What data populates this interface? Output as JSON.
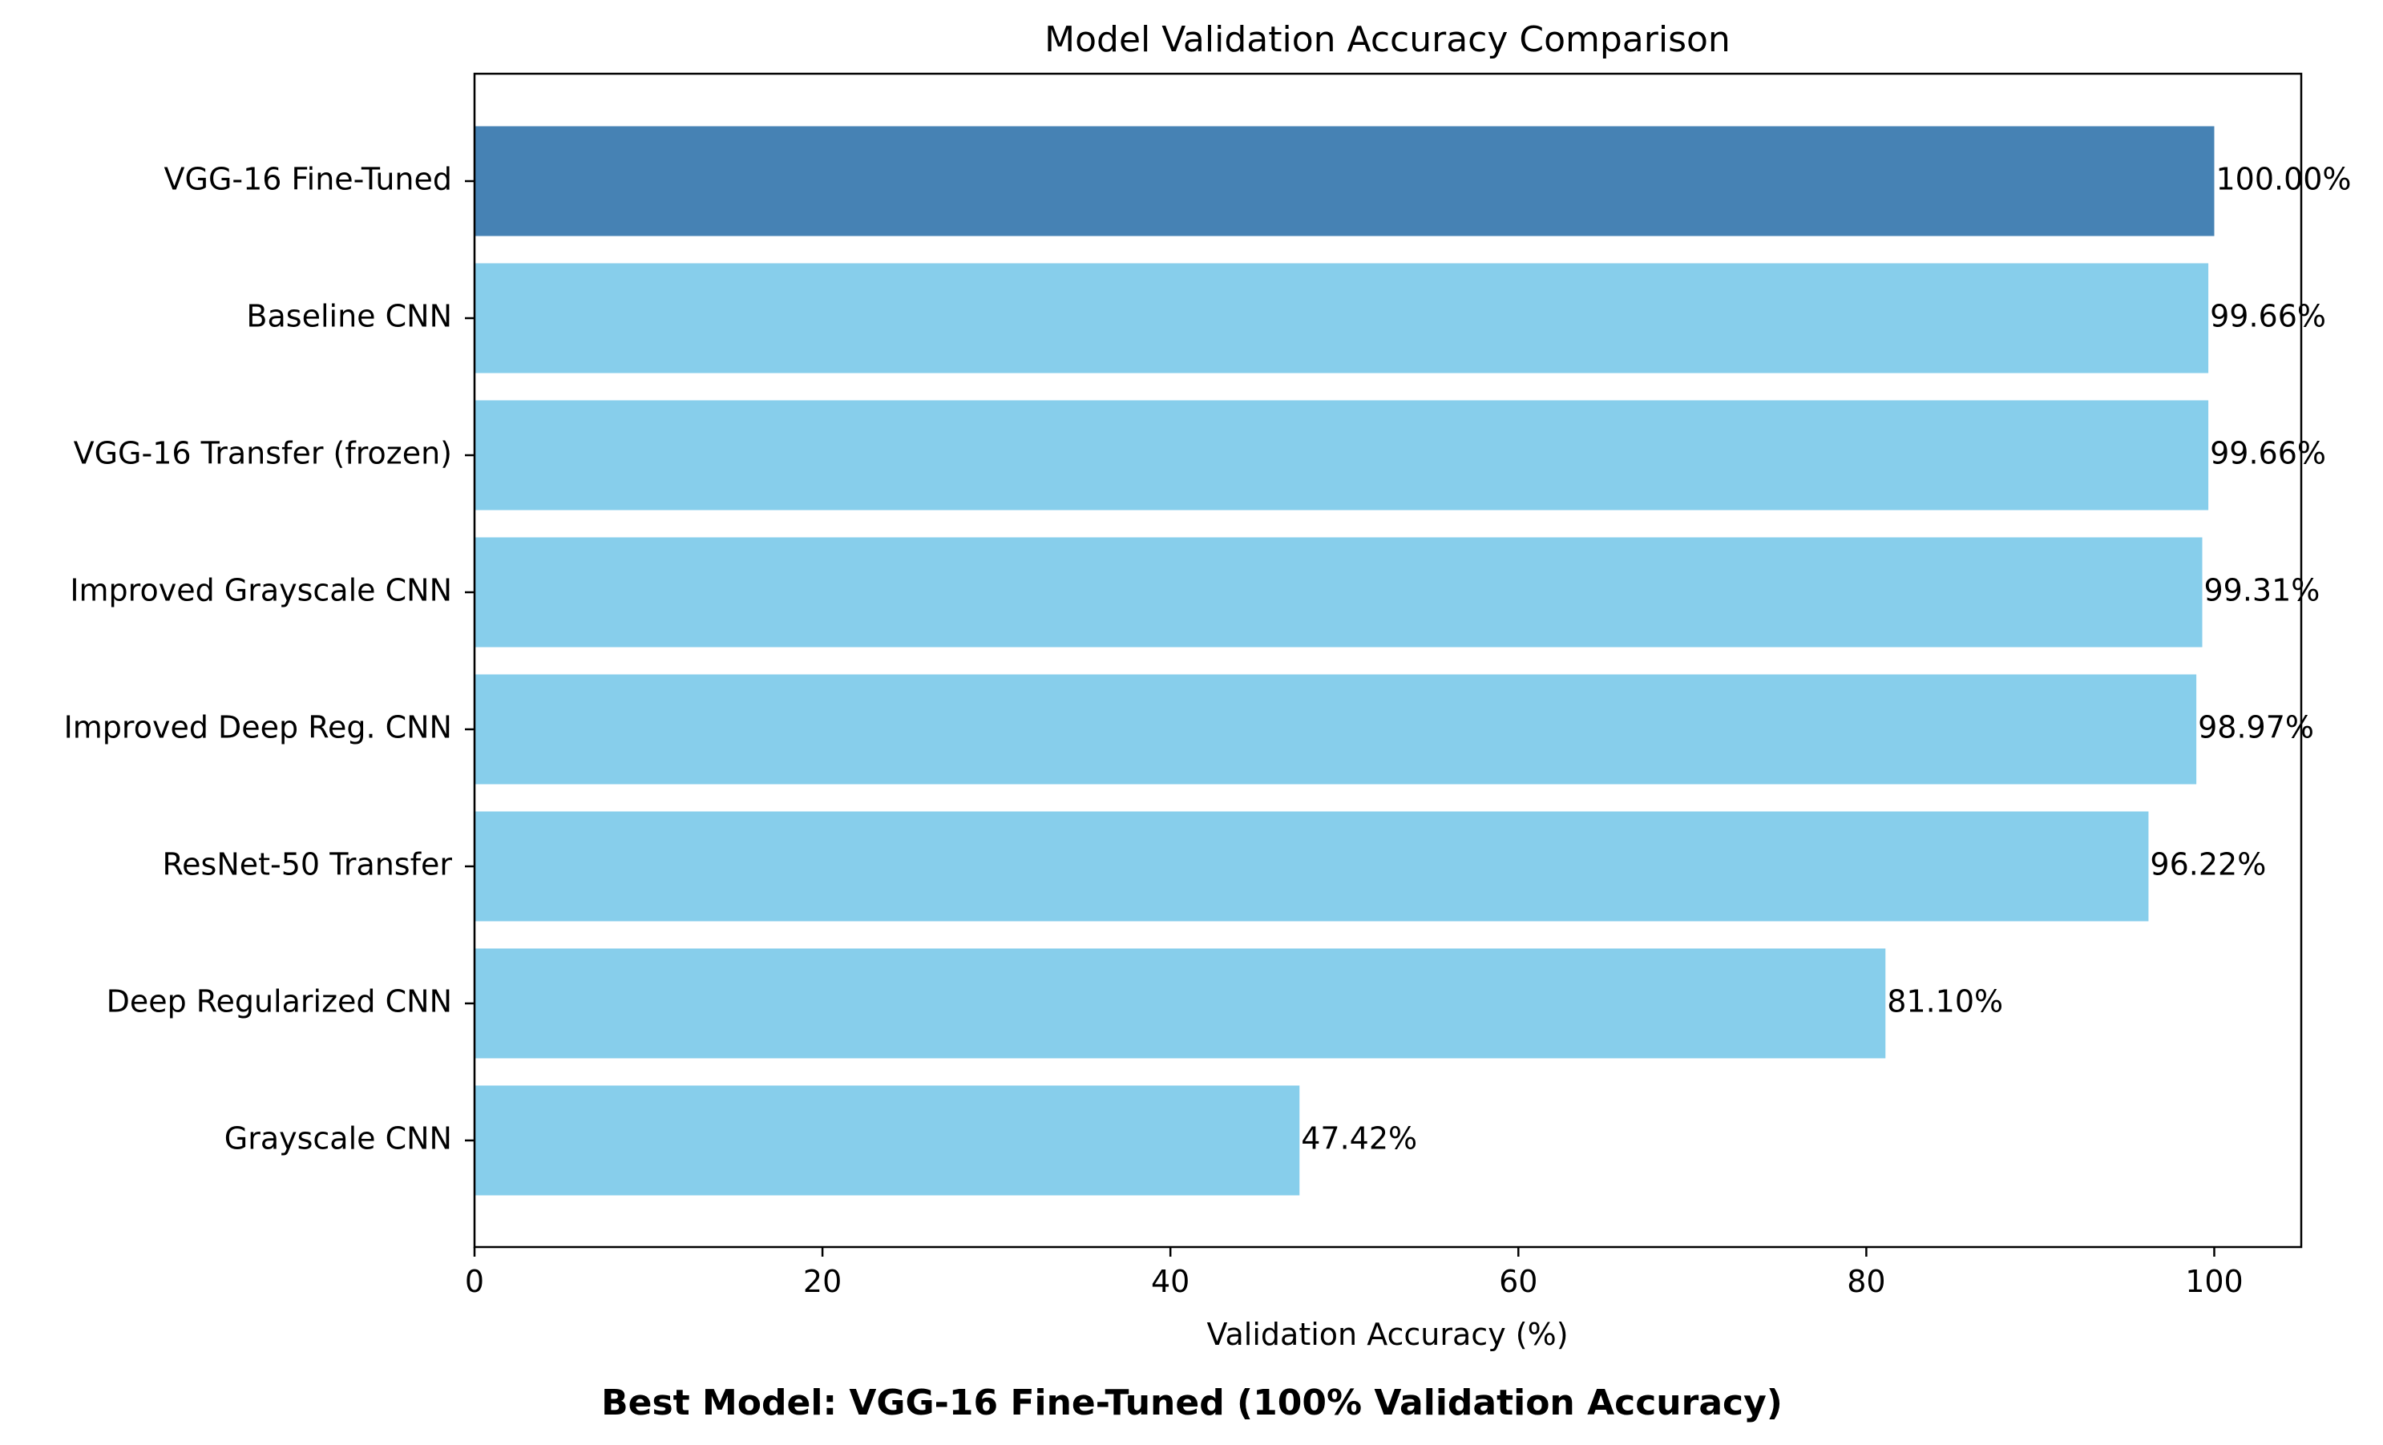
{
  "chart_data": {
    "type": "bar",
    "orientation": "horizontal",
    "title": "Model Validation Accuracy Comparison",
    "xlabel": "Validation Accuracy (%)",
    "ylabel": "",
    "xlim": [
      0,
      105
    ],
    "xticks": [
      0,
      20,
      40,
      60,
      80,
      100
    ],
    "categories": [
      "VGG-16 Fine-Tuned",
      "Baseline CNN",
      "VGG-16 Transfer (frozen)",
      "Improved Grayscale CNN",
      "Improved Deep Reg. CNN",
      "ResNet-50 Transfer",
      "Deep Regularized CNN",
      "Grayscale CNN"
    ],
    "values": [
      100.0,
      99.66,
      99.66,
      99.31,
      98.97,
      96.22,
      81.1,
      47.42
    ],
    "value_labels": [
      "100.00%",
      "99.66%",
      "99.66%",
      "99.31%",
      "98.97%",
      "96.22%",
      "81.10%",
      "47.42%"
    ],
    "highlight_index": 0,
    "colors": {
      "default_bar": "#87CEEB",
      "highlight_bar": "#4682B4",
      "axis": "#000000"
    },
    "grid": false,
    "legend": "none"
  },
  "caption": "Best Model: VGG-16 Fine-Tuned (100% Validation Accuracy)"
}
